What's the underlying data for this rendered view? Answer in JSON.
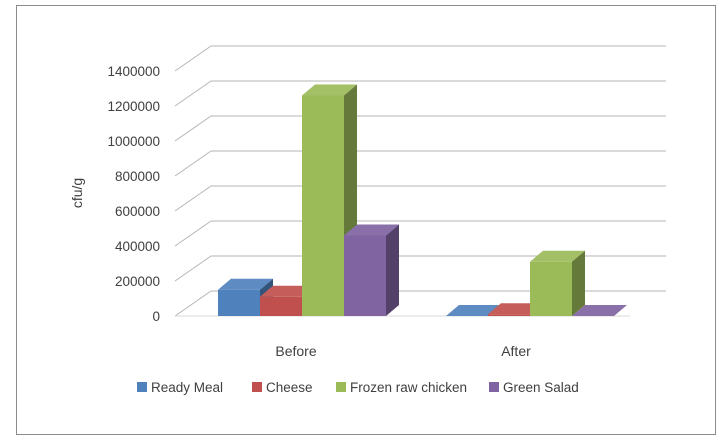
{
  "chart_data": {
    "type": "bar",
    "categories": [
      "Before",
      "After"
    ],
    "series": [
      {
        "name": "Ready Meal",
        "values": [
          150000,
          0
        ],
        "color": "#4f81bd"
      },
      {
        "name": "Cheese",
        "values": [
          110000,
          10000
        ],
        "color": "#c0504d"
      },
      {
        "name": "Frozen raw chicken",
        "values": [
          1260000,
          310000
        ],
        "color": "#9bbb59"
      },
      {
        "name": "Green Salad",
        "values": [
          460000,
          0
        ],
        "color": "#8064a2"
      }
    ],
    "ylabel": "cfu/g",
    "xlabel": "",
    "title": "",
    "ylim": [
      0,
      1400000
    ],
    "yticks": [
      "0",
      "200000",
      "400000",
      "600000",
      "800000",
      "1000000",
      "1200000",
      "1400000"
    ],
    "grid": true,
    "legend": "bottom",
    "style": "3d-clustered-column"
  }
}
